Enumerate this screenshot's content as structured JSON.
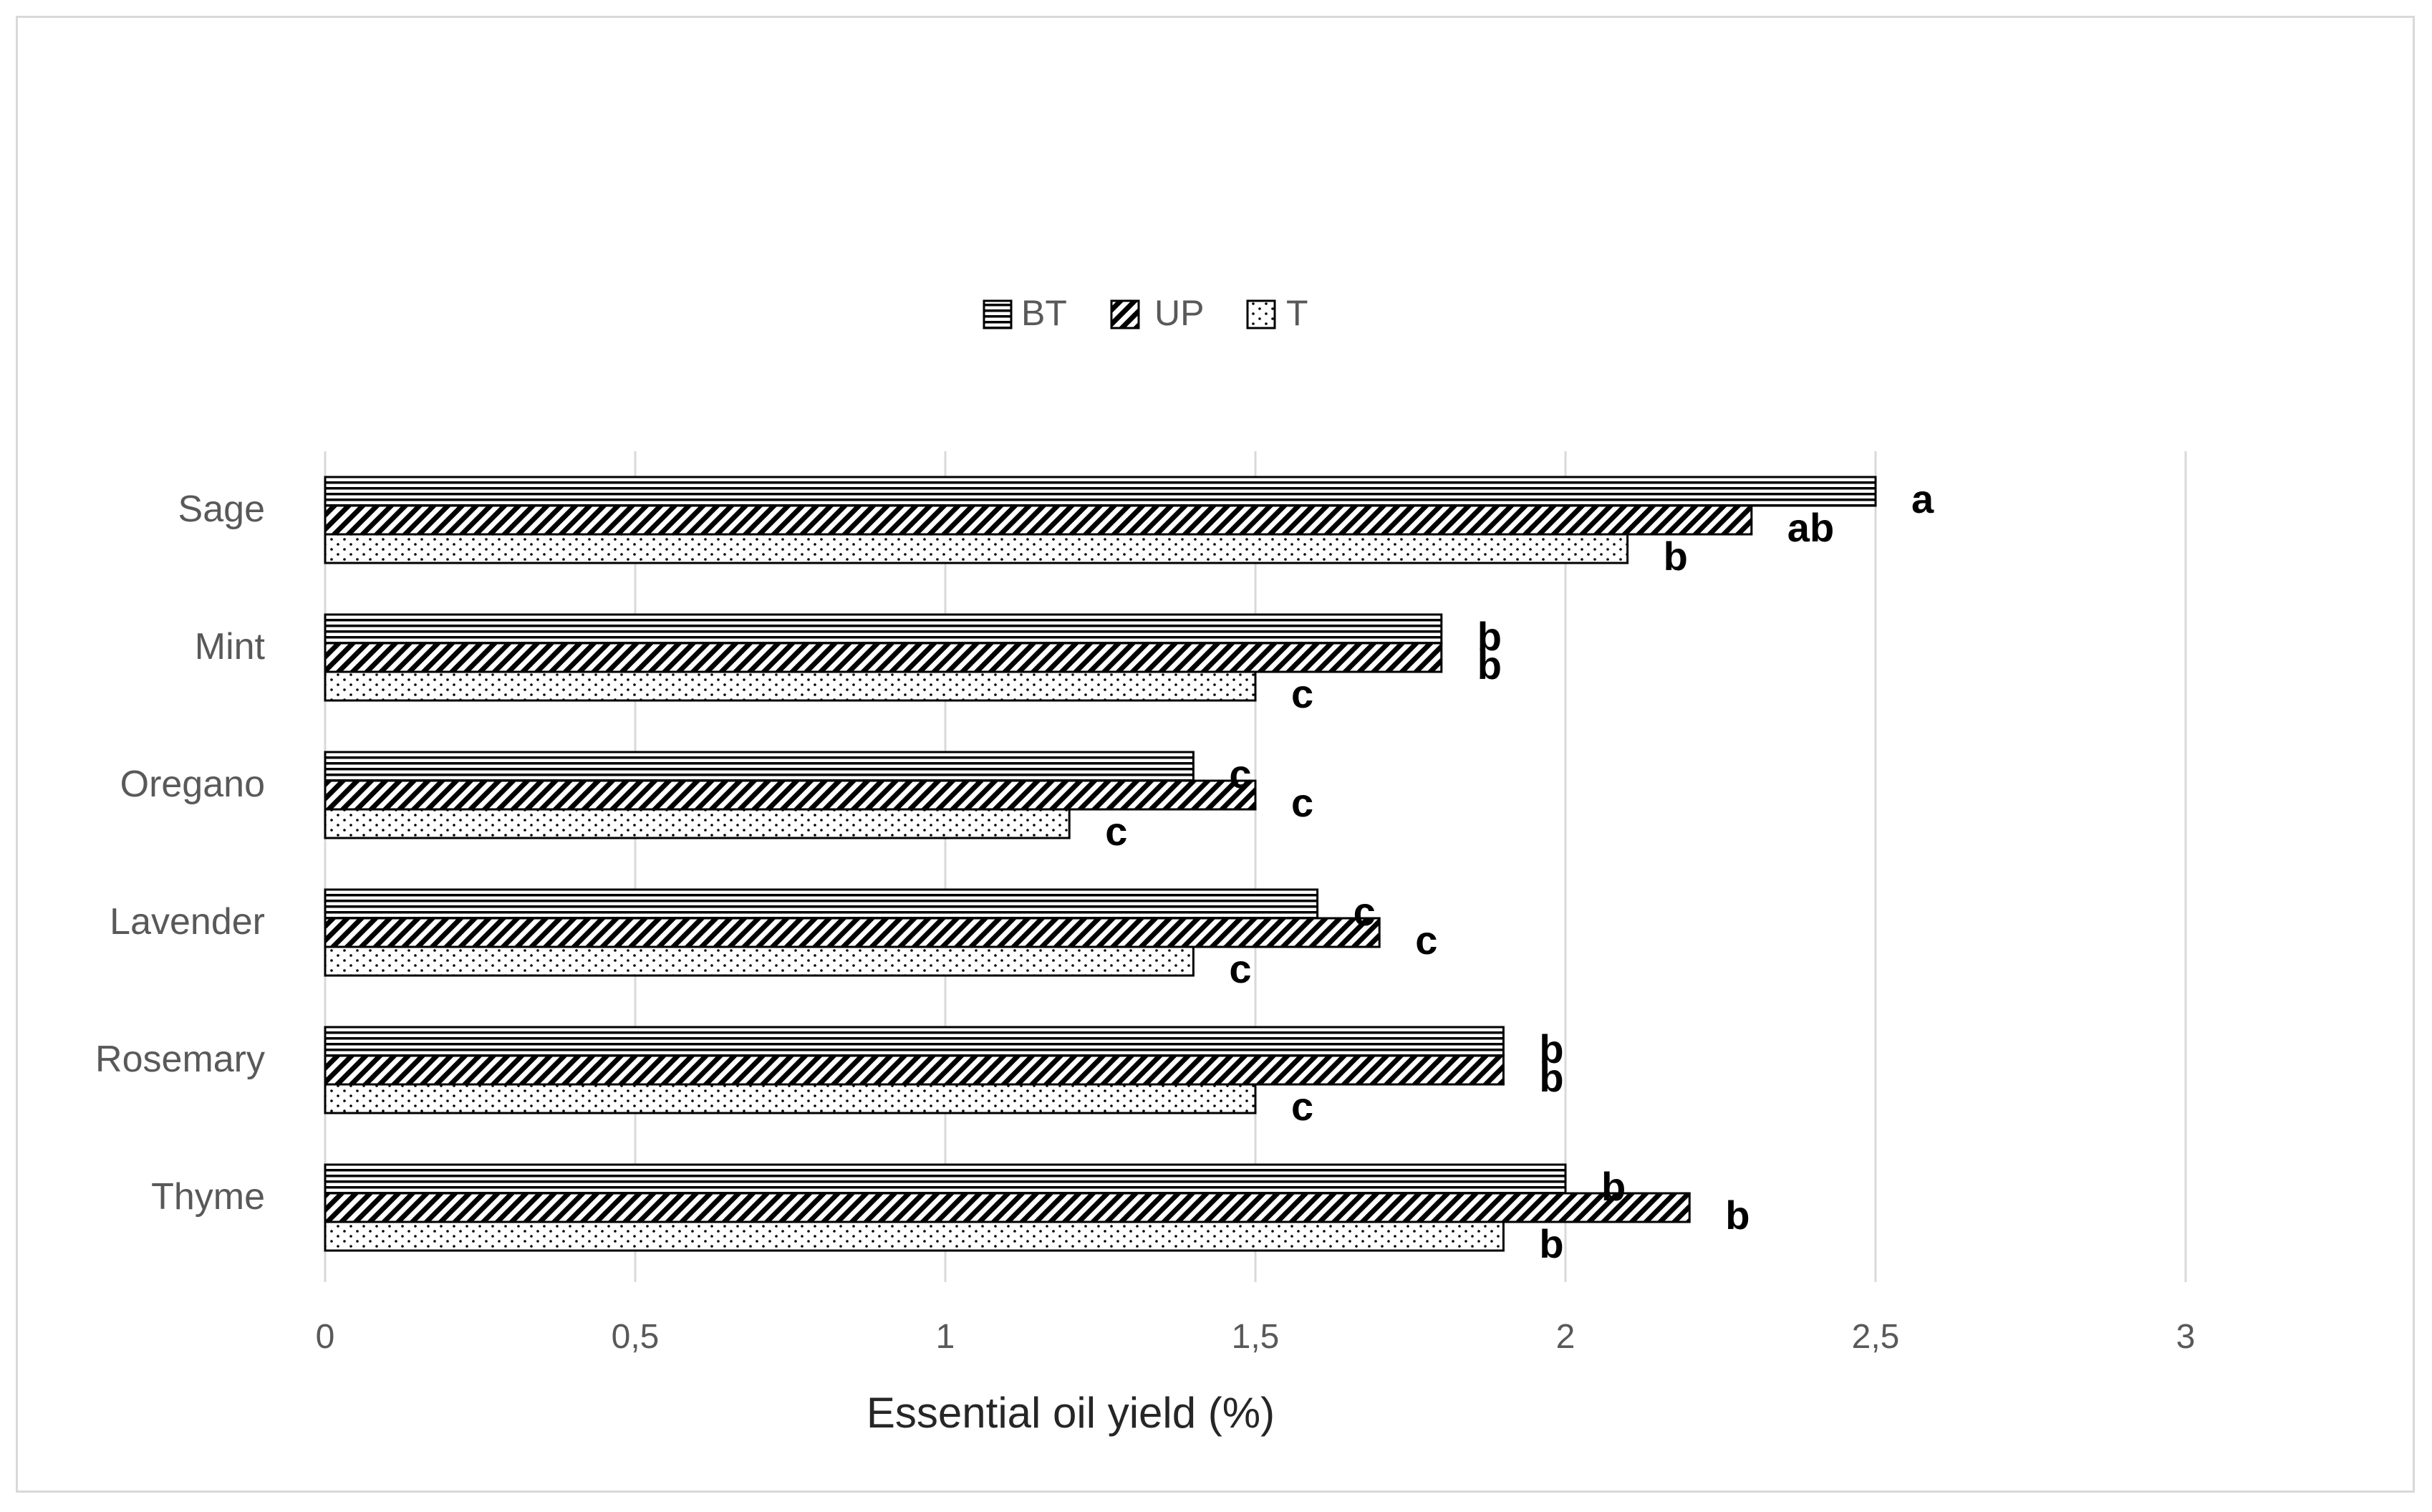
{
  "chart_data": {
    "type": "bar",
    "orientation": "horizontal",
    "title": "",
    "xlabel": "Essential oil yield (%)",
    "ylabel": "",
    "xlim": [
      0,
      3
    ],
    "ticks": [
      "0",
      "0,5",
      "1",
      "1,5",
      "2",
      "2,5",
      "3"
    ],
    "tick_values": [
      0,
      0.5,
      1,
      1.5,
      2,
      2.5,
      3
    ],
    "grid": "vertical",
    "legend_position": "top",
    "categories": [
      "Sage",
      "Mint",
      "Oregano",
      "Lavender",
      "Rosemary",
      "Thyme"
    ],
    "series": [
      {
        "name": "BT",
        "pattern": "horizontal-lines",
        "values": [
          2.5,
          1.8,
          1.4,
          1.6,
          1.9,
          2.0
        ],
        "labels": [
          "a",
          "b",
          "c",
          "c",
          "b",
          "b"
        ]
      },
      {
        "name": "UP",
        "pattern": "diagonal-hatch",
        "values": [
          2.3,
          1.8,
          1.5,
          1.7,
          1.9,
          2.2
        ],
        "labels": [
          "ab",
          "b",
          "c",
          "c",
          "b",
          "b"
        ]
      },
      {
        "name": "T",
        "pattern": "dots",
        "values": [
          2.1,
          1.5,
          1.2,
          1.4,
          1.5,
          1.9
        ],
        "labels": [
          "b",
          "c",
          "c",
          "c",
          "c",
          "b"
        ]
      }
    ],
    "colors": {
      "bar_stroke": "#000000",
      "grid": "#d9d9d9",
      "frame": "#d9d9d9"
    }
  }
}
